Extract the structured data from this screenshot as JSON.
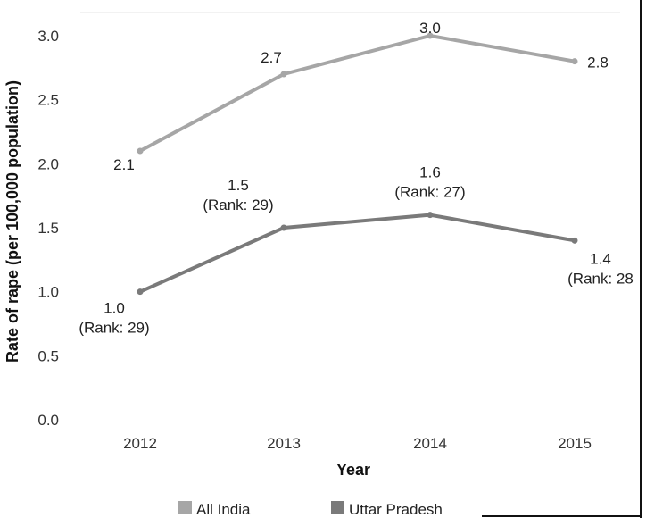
{
  "chart_data": {
    "type": "line",
    "title": "",
    "xlabel": "Year",
    "ylabel": "Rate of rape (per 100,000 population)",
    "categories": [
      "2012",
      "2013",
      "2014",
      "2015"
    ],
    "ylim": [
      0,
      3.0
    ],
    "yticks": [
      "0.0",
      "0.5",
      "1.0",
      "1.5",
      "2.0",
      "2.5",
      "3.0"
    ],
    "grid": false,
    "legend_position": "bottom",
    "series": [
      {
        "name": "All India",
        "values": [
          2.1,
          2.7,
          3.0,
          2.8
        ],
        "color": "#a6a6a6",
        "labels": [
          [
            "2.1"
          ],
          [
            "2.7"
          ],
          [
            "3.0"
          ],
          [
            "2.8"
          ]
        ]
      },
      {
        "name": "Uttar Pradesh",
        "values": [
          1.0,
          1.5,
          1.6,
          1.4
        ],
        "color": "#7a7a7a",
        "labels": [
          [
            "1.0",
            "(Rank: 29)"
          ],
          [
            "1.5",
            "(Rank: 29)"
          ],
          [
            "1.6",
            "(Rank: 27)"
          ],
          [
            "1.4",
            "(Rank: 28"
          ]
        ]
      }
    ]
  }
}
